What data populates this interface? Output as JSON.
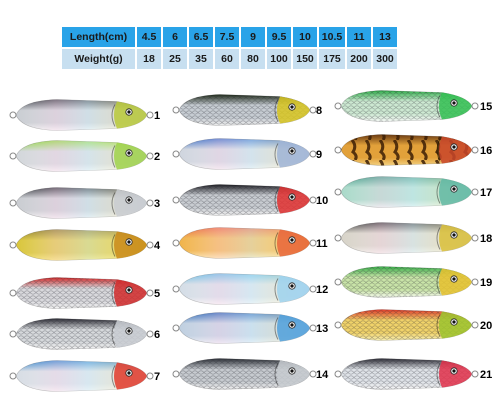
{
  "spec_table": {
    "headers": [
      "Length(cm)",
      "4.5",
      "6",
      "6.5",
      "7.5",
      "9",
      "9.5",
      "10",
      "10.5",
      "11",
      "13"
    ],
    "row": [
      "Weight(g)",
      "18",
      "25",
      "35",
      "60",
      "80",
      "100",
      "150",
      "175",
      "200",
      "300"
    ]
  },
  "lures": [
    {
      "label": "1",
      "body": "#c9cdd2",
      "back": "#3a3e46",
      "head": "#b8c93a",
      "belly": "#f2f2f2",
      "pattern": "holo"
    },
    {
      "label": "2",
      "body": "#d2d6da",
      "back": "#8bd43a",
      "head": "#9fd24a",
      "belly": "#f4f4f4",
      "pattern": "holo"
    },
    {
      "label": "3",
      "body": "#c9ccd1",
      "back": "#2d3138",
      "head": "#c9ccd1",
      "belly": "#efefef",
      "pattern": "holo"
    },
    {
      "label": "4",
      "body": "#d9c53a",
      "back": "#8a7a1e",
      "head": "#c98a1a",
      "belly": "#f4e36a",
      "pattern": "holo"
    },
    {
      "label": "5",
      "body": "#d9d9dd",
      "back": "#d12a2a",
      "head": "#d12a2a",
      "belly": "#f2f2f2",
      "pattern": "scale"
    },
    {
      "label": "6",
      "body": "#d6d9dc",
      "back": "#2a2a33",
      "head": "#c9cdd2",
      "belly": "#f2f2f2",
      "pattern": "scale"
    },
    {
      "label": "7",
      "body": "#d7dde4",
      "back": "#2a7fc9",
      "head": "#e23a2a",
      "belly": "#f3f3f3",
      "pattern": "holo"
    },
    {
      "label": "8",
      "body": "#c7cdd3",
      "back": "#1f2a1a",
      "head": "#d8c51e",
      "belly": "#eeeeee",
      "pattern": "scale"
    },
    {
      "label": "9",
      "body": "#cfd5de",
      "back": "#2f67c2",
      "head": "#9fb4d6",
      "belly": "#f2f2f2",
      "pattern": "holo"
    },
    {
      "label": "10",
      "body": "#c9cdd2",
      "back": "#1c1c22",
      "head": "#e23030",
      "belly": "#f1f1f1",
      "pattern": "scale"
    },
    {
      "label": "11",
      "body": "#f0b34a",
      "back": "#e8653a",
      "head": "#e8653a",
      "belly": "#fbe3a6",
      "pattern": "holo"
    },
    {
      "label": "12",
      "body": "#d4dde6",
      "back": "#63b9e2",
      "head": "#9ed2ee",
      "belly": "#f5f5f5",
      "pattern": "holo"
    },
    {
      "label": "13",
      "body": "#bfcfe0",
      "back": "#1f5fb3",
      "head": "#4fa0dc",
      "belly": "#e9eef4",
      "pattern": "holo"
    },
    {
      "label": "14",
      "body": "#c7cbd0",
      "back": "#2a2e35",
      "head": "#c7cbd0",
      "belly": "#efefef",
      "pattern": "scale"
    },
    {
      "label": "15",
      "body": "#cde9d2",
      "back": "#2fb04a",
      "head": "#32c052",
      "belly": "#f3f7f3",
      "pattern": "scale"
    },
    {
      "label": "16",
      "body": "#e2a13a",
      "back": "#6a3a12",
      "head": "#c8452a",
      "belly": "#f2d080",
      "pattern": "tiger"
    },
    {
      "label": "17",
      "body": "#a9d9c9",
      "back": "#3e9a86",
      "head": "#62b8a3",
      "belly": "#e4f3ee",
      "pattern": "holo"
    },
    {
      "label": "18",
      "body": "#d7d3c8",
      "back": "#3a3a3a",
      "head": "#d9c03a",
      "belly": "#f1efe8",
      "pattern": "holo"
    },
    {
      "label": "19",
      "body": "#c9e4a8",
      "back": "#3ab04a",
      "head": "#e7c22e",
      "belly": "#f3f8ea",
      "pattern": "scale"
    },
    {
      "label": "20",
      "body": "#f1d36a",
      "back": "#e23a2a",
      "head": "#9cc32e",
      "belly": "#f8eeb0",
      "pattern": "scale"
    },
    {
      "label": "21",
      "body": "#dfe3e8",
      "back": "#2a2a33",
      "head": "#e2304a",
      "belly": "#f3f3f3",
      "pattern": "scale"
    }
  ]
}
